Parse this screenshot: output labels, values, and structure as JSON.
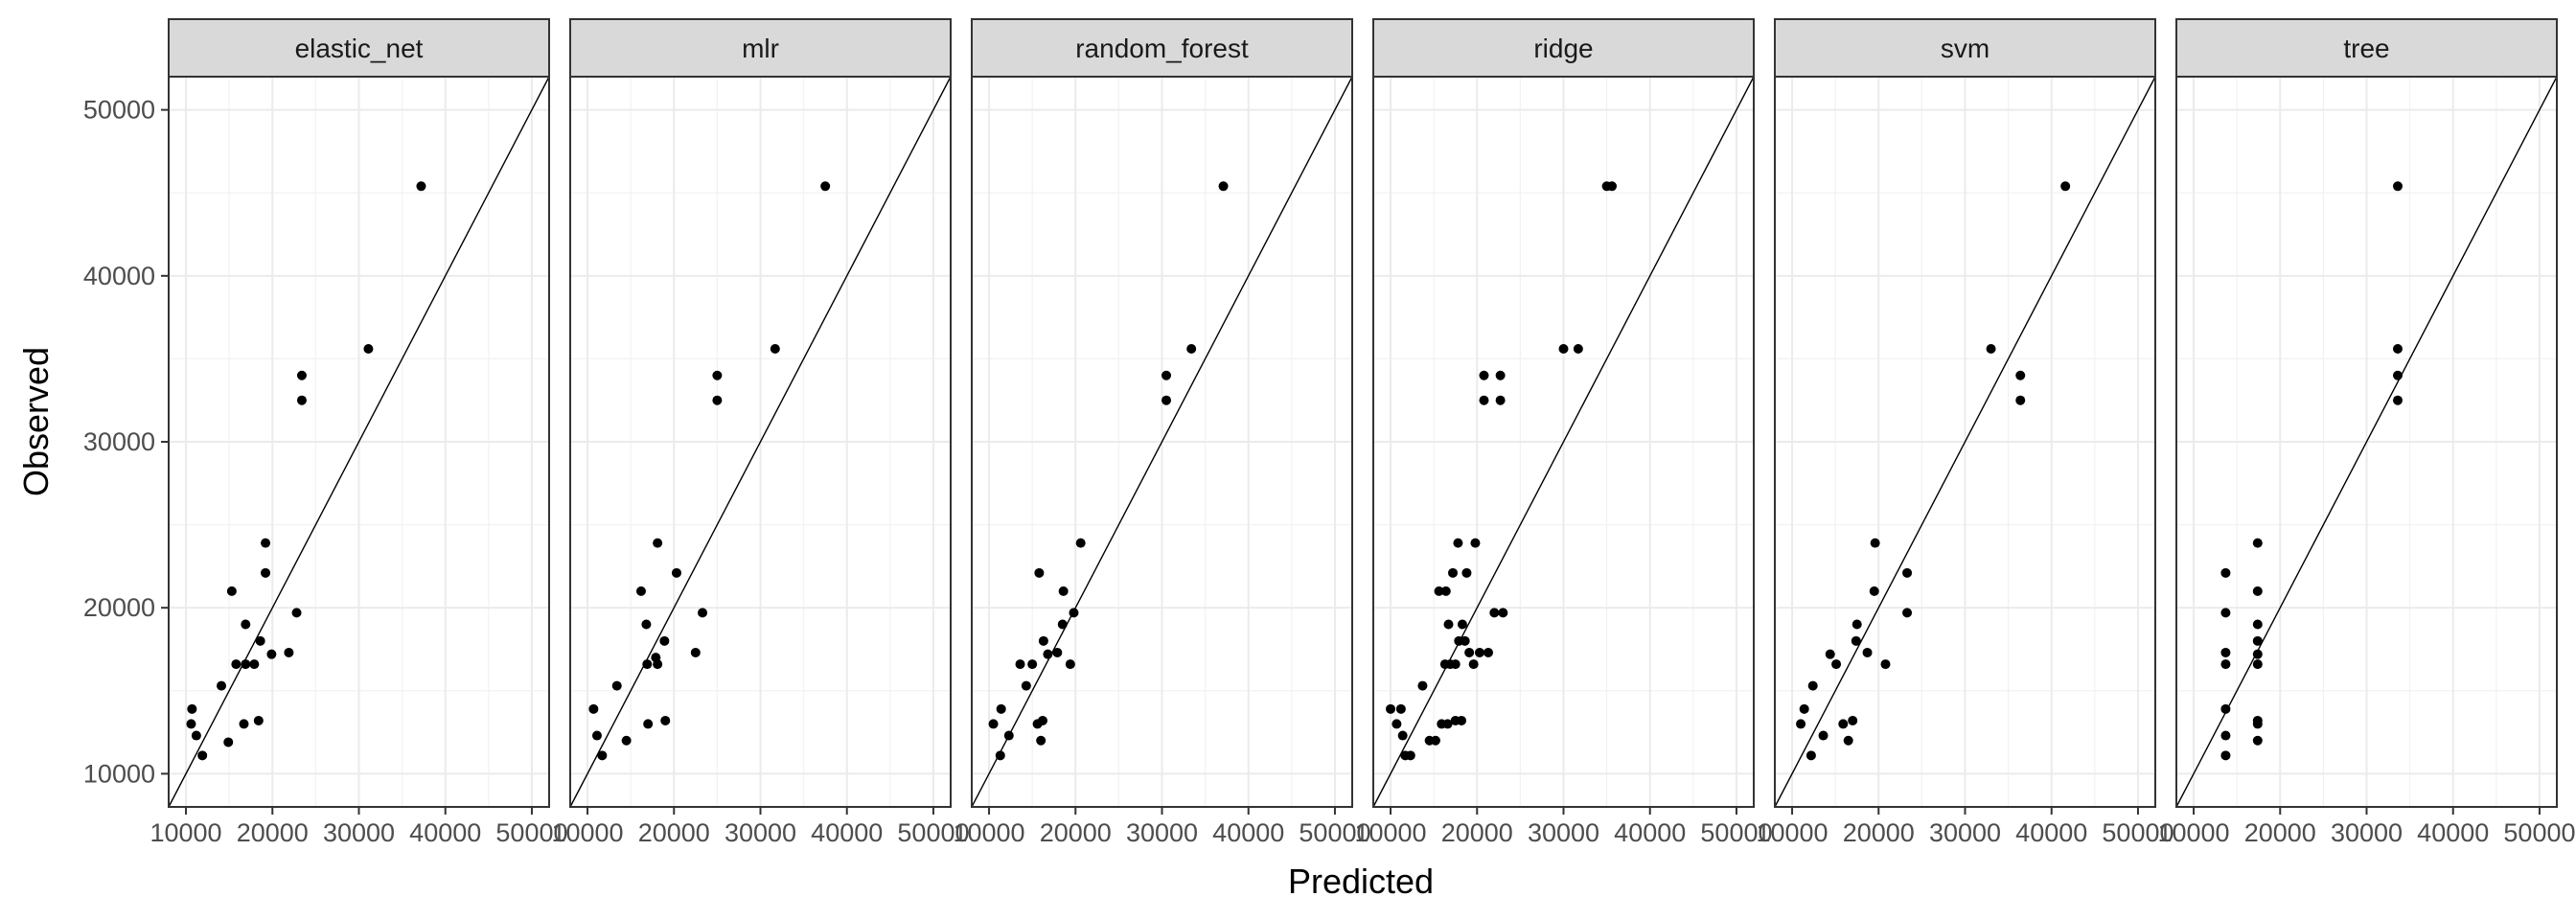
{
  "chart_data": {
    "type": "scatter",
    "xlabel": "Predicted",
    "ylabel": "Observed",
    "xlim": [
      8000,
      52000
    ],
    "ylim": [
      8000,
      52000
    ],
    "x_ticks": [
      10000,
      20000,
      30000,
      40000,
      50000
    ],
    "x_tick_labels": [
      "10000",
      "20000",
      "30000",
      "40000",
      "50000"
    ],
    "y_ticks": [
      10000,
      20000,
      30000,
      40000,
      50000
    ],
    "y_tick_labels": [
      "10000",
      "20000",
      "30000",
      "40000",
      "50000"
    ],
    "reference_line": "y = x",
    "grid": true,
    "panels": [
      {
        "name": "elastic_net",
        "points": [
          [
            10700,
            13900
          ],
          [
            10600,
            13000
          ],
          [
            11200,
            12300
          ],
          [
            11900,
            11100
          ],
          [
            14100,
            15300
          ],
          [
            14900,
            11900
          ],
          [
            15300,
            21000
          ],
          [
            15800,
            16600
          ],
          [
            16700,
            13000
          ],
          [
            16900,
            19000
          ],
          [
            16900,
            16600
          ],
          [
            17900,
            16600
          ],
          [
            18600,
            18000
          ],
          [
            18400,
            13200
          ],
          [
            19200,
            22100
          ],
          [
            19200,
            23900
          ],
          [
            19900,
            17200
          ],
          [
            21900,
            17300
          ],
          [
            22800,
            19700
          ],
          [
            23400,
            34000
          ],
          [
            23400,
            32500
          ],
          [
            31100,
            35600
          ],
          [
            37200,
            45400
          ]
        ]
      },
      {
        "name": "mlr",
        "points": [
          [
            10700,
            13900
          ],
          [
            11100,
            12300
          ],
          [
            11700,
            11100
          ],
          [
            13400,
            15300
          ],
          [
            14500,
            12000
          ],
          [
            16200,
            21000
          ],
          [
            16800,
            19000
          ],
          [
            16900,
            16600
          ],
          [
            17000,
            13000
          ],
          [
            17900,
            17000
          ],
          [
            18100,
            23900
          ],
          [
            18100,
            16600
          ],
          [
            18900,
            18000
          ],
          [
            19000,
            13200
          ],
          [
            20300,
            22100
          ],
          [
            22500,
            17300
          ],
          [
            23300,
            19700
          ],
          [
            25000,
            34000
          ],
          [
            25000,
            32500
          ],
          [
            31700,
            35600
          ],
          [
            37500,
            45400
          ]
        ]
      },
      {
        "name": "random_forest",
        "points": [
          [
            10500,
            13000
          ],
          [
            11400,
            13900
          ],
          [
            11300,
            11100
          ],
          [
            12300,
            12300
          ],
          [
            13600,
            16600
          ],
          [
            14300,
            15300
          ],
          [
            15000,
            16600
          ],
          [
            15600,
            13000
          ],
          [
            15800,
            22100
          ],
          [
            16000,
            12000
          ],
          [
            16200,
            13200
          ],
          [
            16300,
            18000
          ],
          [
            16800,
            17200
          ],
          [
            17900,
            17300
          ],
          [
            18500,
            19000
          ],
          [
            18600,
            21000
          ],
          [
            19400,
            16600
          ],
          [
            19800,
            19700
          ],
          [
            20600,
            23900
          ],
          [
            30500,
            34000
          ],
          [
            30500,
            32500
          ],
          [
            33400,
            35600
          ],
          [
            37100,
            45400
          ]
        ]
      },
      {
        "name": "ridge",
        "points": [
          [
            10000,
            13900
          ],
          [
            10700,
            13000
          ],
          [
            11200,
            13900
          ],
          [
            11400,
            12300
          ],
          [
            11700,
            11100
          ],
          [
            12300,
            11100
          ],
          [
            13700,
            15300
          ],
          [
            14500,
            12000
          ],
          [
            15200,
            12000
          ],
          [
            15600,
            21000
          ],
          [
            16400,
            21000
          ],
          [
            15900,
            13000
          ],
          [
            16600,
            13000
          ],
          [
            16300,
            16600
          ],
          [
            16900,
            16600
          ],
          [
            16700,
            19000
          ],
          [
            17500,
            16600
          ],
          [
            17200,
            22100
          ],
          [
            17500,
            13200
          ],
          [
            17900,
            18000
          ],
          [
            17800,
            23900
          ],
          [
            18300,
            19000
          ],
          [
            18200,
            13200
          ],
          [
            18600,
            18000
          ],
          [
            18800,
            22100
          ],
          [
            19100,
            17300
          ],
          [
            19600,
            16600
          ],
          [
            19800,
            23900
          ],
          [
            20300,
            17300
          ],
          [
            21300,
            17300
          ],
          [
            22000,
            19700
          ],
          [
            23000,
            19700
          ],
          [
            20800,
            34000
          ],
          [
            22700,
            34000
          ],
          [
            20800,
            32500
          ],
          [
            22700,
            32500
          ],
          [
            30000,
            35600
          ],
          [
            31700,
            35600
          ],
          [
            35000,
            45400
          ],
          [
            35600,
            45400
          ]
        ]
      },
      {
        "name": "svm",
        "points": [
          [
            11000,
            13000
          ],
          [
            11400,
            13900
          ],
          [
            12200,
            11100
          ],
          [
            12400,
            15300
          ],
          [
            13600,
            12300
          ],
          [
            14400,
            17200
          ],
          [
            15100,
            16600
          ],
          [
            15900,
            13000
          ],
          [
            16500,
            12000
          ],
          [
            17000,
            13200
          ],
          [
            17400,
            18000
          ],
          [
            17500,
            19000
          ],
          [
            18700,
            17300
          ],
          [
            19500,
            21000
          ],
          [
            19600,
            23900
          ],
          [
            20800,
            16600
          ],
          [
            23300,
            22100
          ],
          [
            23300,
            19700
          ],
          [
            33000,
            35600
          ],
          [
            36400,
            34000
          ],
          [
            36400,
            32500
          ],
          [
            41600,
            45400
          ]
        ]
      },
      {
        "name": "tree",
        "points": [
          [
            13700,
            22100
          ],
          [
            13700,
            19700
          ],
          [
            13700,
            17300
          ],
          [
            13700,
            16600
          ],
          [
            13700,
            13900
          ],
          [
            13700,
            12300
          ],
          [
            13700,
            11100
          ],
          [
            17400,
            23900
          ],
          [
            17400,
            21000
          ],
          [
            17400,
            19000
          ],
          [
            17400,
            18000
          ],
          [
            17400,
            17200
          ],
          [
            17400,
            16600
          ],
          [
            17400,
            13200
          ],
          [
            17400,
            13000
          ],
          [
            17400,
            12000
          ],
          [
            33600,
            45400
          ],
          [
            33600,
            35600
          ],
          [
            33600,
            34000
          ],
          [
            33600,
            32500
          ]
        ]
      }
    ]
  }
}
